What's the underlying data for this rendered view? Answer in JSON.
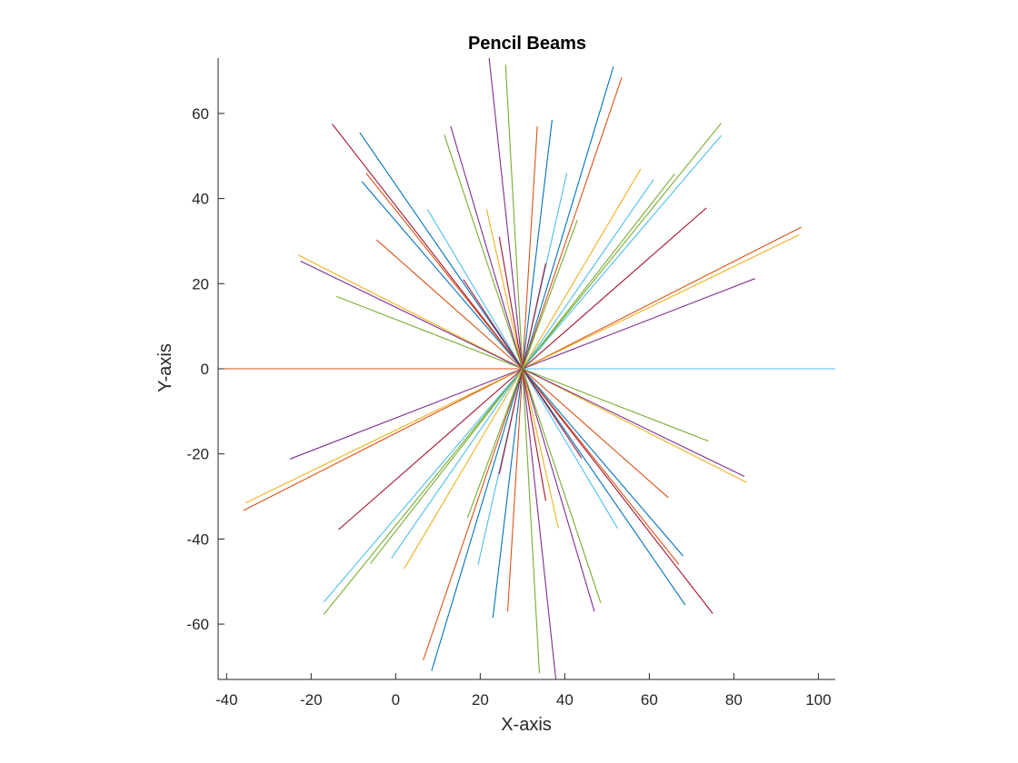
{
  "chart_data": {
    "type": "line",
    "title": "Pencil Beams",
    "xlabel": "X-axis",
    "ylabel": "Y-axis",
    "xlim": [
      -42,
      104
    ],
    "ylim": [
      -73,
      73
    ],
    "xticks": [
      -40,
      -20,
      0,
      20,
      40,
      60,
      80,
      100
    ],
    "yticks": [
      -60,
      -40,
      -20,
      0,
      20,
      40,
      60
    ],
    "grid": false,
    "legend": "none",
    "origin": [
      30,
      0
    ],
    "series": [
      {
        "x": [
          30,
          104
        ],
        "y": [
          0,
          0
        ],
        "color": "#4DBEEE"
      },
      {
        "x": [
          30,
          -42
        ],
        "y": [
          0,
          0
        ],
        "color": "#D95319"
      },
      {
        "x": [
          30,
          96
        ],
        "y": [
          0,
          33.3
        ],
        "color": "#D95319"
      },
      {
        "x": [
          30,
          -36
        ],
        "y": [
          0,
          -33.3
        ],
        "color": "#D95319"
      },
      {
        "x": [
          30,
          95.5
        ],
        "y": [
          0,
          31.5
        ],
        "color": "#EDB120"
      },
      {
        "x": [
          30,
          -35.5
        ],
        "y": [
          0,
          -31.5
        ],
        "color": "#EDB120"
      },
      {
        "x": [
          30,
          85
        ],
        "y": [
          0,
          21.2
        ],
        "color": "#7E2F8E"
      },
      {
        "x": [
          30,
          -25
        ],
        "y": [
          0,
          -21.2
        ],
        "color": "#7E2F8E"
      },
      {
        "x": [
          30,
          77
        ],
        "y": [
          0,
          57.7
        ],
        "color": "#77AC30"
      },
      {
        "x": [
          30,
          -17
        ],
        "y": [
          0,
          -57.7
        ],
        "color": "#77AC30"
      },
      {
        "x": [
          30,
          77
        ],
        "y": [
          0,
          54.8
        ],
        "color": "#4DBEEE"
      },
      {
        "x": [
          30,
          -17
        ],
        "y": [
          0,
          -54.8
        ],
        "color": "#4DBEEE"
      },
      {
        "x": [
          30,
          73.5
        ],
        "y": [
          0,
          37.8
        ],
        "color": "#A2142F"
      },
      {
        "x": [
          30,
          -13.5
        ],
        "y": [
          0,
          -37.8
        ],
        "color": "#A2142F"
      },
      {
        "x": [
          30,
          66
        ],
        "y": [
          0,
          45.8
        ],
        "color": "#77AC30"
      },
      {
        "x": [
          30,
          -6
        ],
        "y": [
          0,
          -45.8
        ],
        "color": "#77AC30"
      },
      {
        "x": [
          30,
          61
        ],
        "y": [
          0,
          44.5
        ],
        "color": "#4DBEEE"
      },
      {
        "x": [
          30,
          -1
        ],
        "y": [
          0,
          -44.5
        ],
        "color": "#4DBEEE"
      },
      {
        "x": [
          30,
          58
        ],
        "y": [
          0,
          47
        ],
        "color": "#EDB120"
      },
      {
        "x": [
          30,
          2
        ],
        "y": [
          0,
          -47
        ],
        "color": "#EDB120"
      },
      {
        "x": [
          30,
          51.5
        ],
        "y": [
          0,
          71
        ],
        "color": "#0072BD"
      },
      {
        "x": [
          30,
          8.5
        ],
        "y": [
          0,
          -71
        ],
        "color": "#0072BD"
      },
      {
        "x": [
          30,
          53.5
        ],
        "y": [
          0,
          68.5
        ],
        "color": "#D95319"
      },
      {
        "x": [
          30,
          6.5
        ],
        "y": [
          0,
          -68.5
        ],
        "color": "#D95319"
      },
      {
        "x": [
          30,
          40.5
        ],
        "y": [
          0,
          46
        ],
        "color": "#4DBEEE"
      },
      {
        "x": [
          30,
          19.5
        ],
        "y": [
          0,
          -46
        ],
        "color": "#4DBEEE"
      },
      {
        "x": [
          30,
          37
        ],
        "y": [
          0,
          58.5
        ],
        "color": "#0072BD"
      },
      {
        "x": [
          30,
          23
        ],
        "y": [
          0,
          -58.5
        ],
        "color": "#0072BD"
      },
      {
        "x": [
          30,
          33.5
        ],
        "y": [
          0,
          57
        ],
        "color": "#D95319"
      },
      {
        "x": [
          30,
          26.5
        ],
        "y": [
          0,
          -57
        ],
        "color": "#D95319"
      },
      {
        "x": [
          30,
          35.5
        ],
        "y": [
          0,
          24.8
        ],
        "color": "#A2142F"
      },
      {
        "x": [
          30,
          24.5
        ],
        "y": [
          0,
          -24.8
        ],
        "color": "#A2142F"
      },
      {
        "x": [
          30,
          26
        ],
        "y": [
          0,
          71.5
        ],
        "color": "#77AC30"
      },
      {
        "x": [
          30,
          34
        ],
        "y": [
          0,
          -71.5
        ],
        "color": "#77AC30"
      },
      {
        "x": [
          30,
          22
        ],
        "y": [
          0,
          74
        ],
        "color": "#7E2F8E"
      },
      {
        "x": [
          30,
          38
        ],
        "y": [
          0,
          -74
        ],
        "color": "#7E2F8E"
      },
      {
        "x": [
          30,
          24.5
        ],
        "y": [
          0,
          31
        ],
        "color": "#A2142F"
      },
      {
        "x": [
          30,
          35.5
        ],
        "y": [
          0,
          -31
        ],
        "color": "#A2142F"
      },
      {
        "x": [
          30,
          21.5
        ],
        "y": [
          0,
          37.5
        ],
        "color": "#EDB120"
      },
      {
        "x": [
          30,
          38.5
        ],
        "y": [
          0,
          -37.5
        ],
        "color": "#EDB120"
      },
      {
        "x": [
          30,
          13
        ],
        "y": [
          0,
          57
        ],
        "color": "#7E2F8E"
      },
      {
        "x": [
          30,
          47
        ],
        "y": [
          0,
          -57
        ],
        "color": "#7E2F8E"
      },
      {
        "x": [
          30,
          11.5
        ],
        "y": [
          0,
          55
        ],
        "color": "#77AC30"
      },
      {
        "x": [
          30,
          48.5
        ],
        "y": [
          0,
          -55
        ],
        "color": "#77AC30"
      },
      {
        "x": [
          30,
          7.5
        ],
        "y": [
          0,
          37.5
        ],
        "color": "#4DBEEE"
      },
      {
        "x": [
          30,
          52.5
        ],
        "y": [
          0,
          -37.5
        ],
        "color": "#4DBEEE"
      },
      {
        "x": [
          30,
          -8.5
        ],
        "y": [
          0,
          55.5
        ],
        "color": "#0072BD"
      },
      {
        "x": [
          30,
          68.5
        ],
        "y": [
          0,
          -55.5
        ],
        "color": "#0072BD"
      },
      {
        "x": [
          30,
          -15
        ],
        "y": [
          0,
          57.5
        ],
        "color": "#A2142F"
      },
      {
        "x": [
          30,
          75
        ],
        "y": [
          0,
          -57.5
        ],
        "color": "#A2142F"
      },
      {
        "x": [
          30,
          -7
        ],
        "y": [
          0,
          46
        ],
        "color": "#D95319"
      },
      {
        "x": [
          30,
          67
        ],
        "y": [
          0,
          -46
        ],
        "color": "#D95319"
      },
      {
        "x": [
          30,
          -8
        ],
        "y": [
          0,
          44
        ],
        "color": "#0072BD"
      },
      {
        "x": [
          30,
          68
        ],
        "y": [
          0,
          -44
        ],
        "color": "#0072BD"
      },
      {
        "x": [
          30,
          -4.5
        ],
        "y": [
          0,
          30.3
        ],
        "color": "#D95319"
      },
      {
        "x": [
          30,
          64.5
        ],
        "y": [
          0,
          -30.3
        ],
        "color": "#D95319"
      },
      {
        "x": [
          30,
          -23
        ],
        "y": [
          0,
          26.7
        ],
        "color": "#EDB120"
      },
      {
        "x": [
          30,
          83
        ],
        "y": [
          0,
          -26.7
        ],
        "color": "#EDB120"
      },
      {
        "x": [
          30,
          -22.5
        ],
        "y": [
          0,
          25.3
        ],
        "color": "#7E2F8E"
      },
      {
        "x": [
          30,
          82.5
        ],
        "y": [
          0,
          -25.3
        ],
        "color": "#7E2F8E"
      },
      {
        "x": [
          30,
          -14
        ],
        "y": [
          0,
          17
        ],
        "color": "#77AC30"
      },
      {
        "x": [
          30,
          74
        ],
        "y": [
          0,
          -17
        ],
        "color": "#77AC30"
      },
      {
        "x": [
          30,
          16
        ],
        "y": [
          0,
          21
        ],
        "color": "#A2142F"
      },
      {
        "x": [
          30,
          44
        ],
        "y": [
          0,
          -21
        ],
        "color": "#A2142F"
      },
      {
        "x": [
          30,
          43
        ],
        "y": [
          0,
          35
        ],
        "color": "#77AC30"
      },
      {
        "x": [
          30,
          17
        ],
        "y": [
          0,
          -35
        ],
        "color": "#77AC30"
      }
    ]
  }
}
